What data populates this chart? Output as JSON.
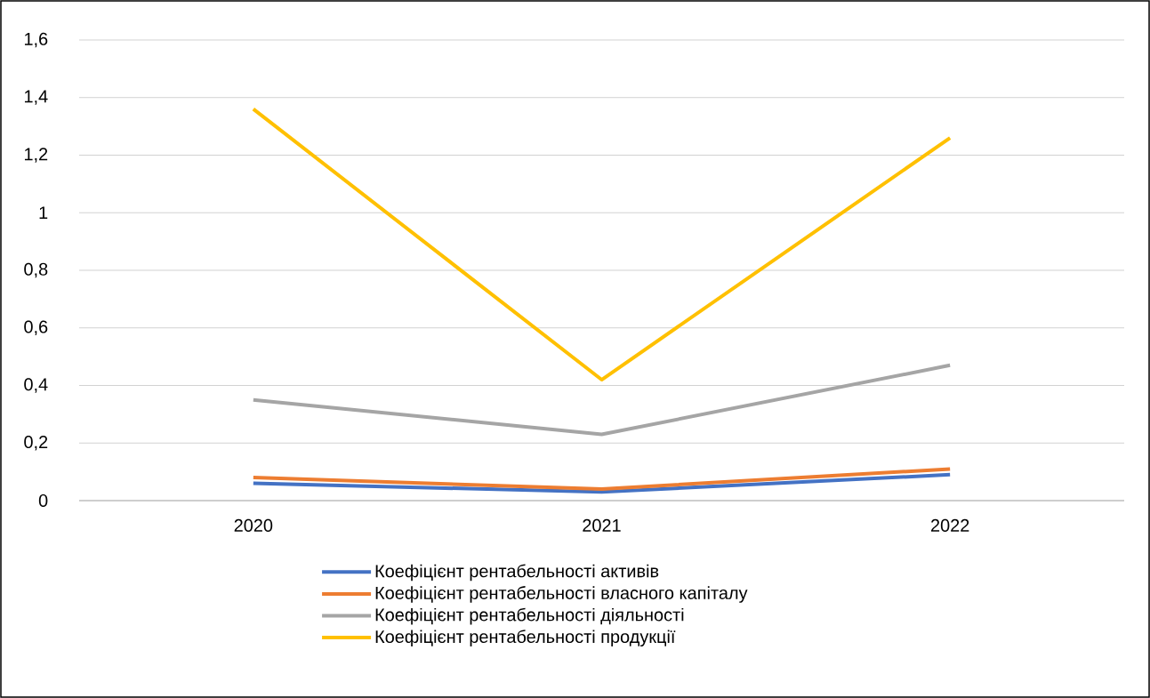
{
  "chart_data": {
    "type": "line",
    "categories": [
      "2020",
      "2021",
      "2022"
    ],
    "series": [
      {
        "name": "Коефіцієнт рентабельності активів",
        "color": "#4472c4",
        "values": [
          0.06,
          0.03,
          0.09
        ]
      },
      {
        "name": "Коефіцієнт рентабельності власного капіталу",
        "color": "#ed7d31",
        "values": [
          0.08,
          0.04,
          0.11
        ]
      },
      {
        "name": "Коефіцієнт рентабельності діяльності",
        "color": "#a5a5a5",
        "values": [
          0.35,
          0.23,
          0.47
        ]
      },
      {
        "name": "Коефіцієнт рентабельності продукції",
        "color": "#ffc000",
        "values": [
          1.36,
          0.42,
          1.26
        ]
      }
    ],
    "ylim": [
      0,
      1.6
    ],
    "yticks": [
      0,
      {
        "value": 0.2,
        "label": "0,2"
      },
      {
        "value": 0.4,
        "label": "0,4"
      },
      {
        "value": 0.6,
        "label": "0,6"
      },
      {
        "value": 0.8,
        "label": "0,8"
      },
      1,
      {
        "value": 1.2,
        "label": "1,2"
      },
      {
        "value": 1.4,
        "label": "1,4"
      },
      {
        "value": 1.6,
        "label": "1,6"
      }
    ],
    "grid": "y",
    "legend": "bottom",
    "marker": "none",
    "line_style": "solid"
  }
}
